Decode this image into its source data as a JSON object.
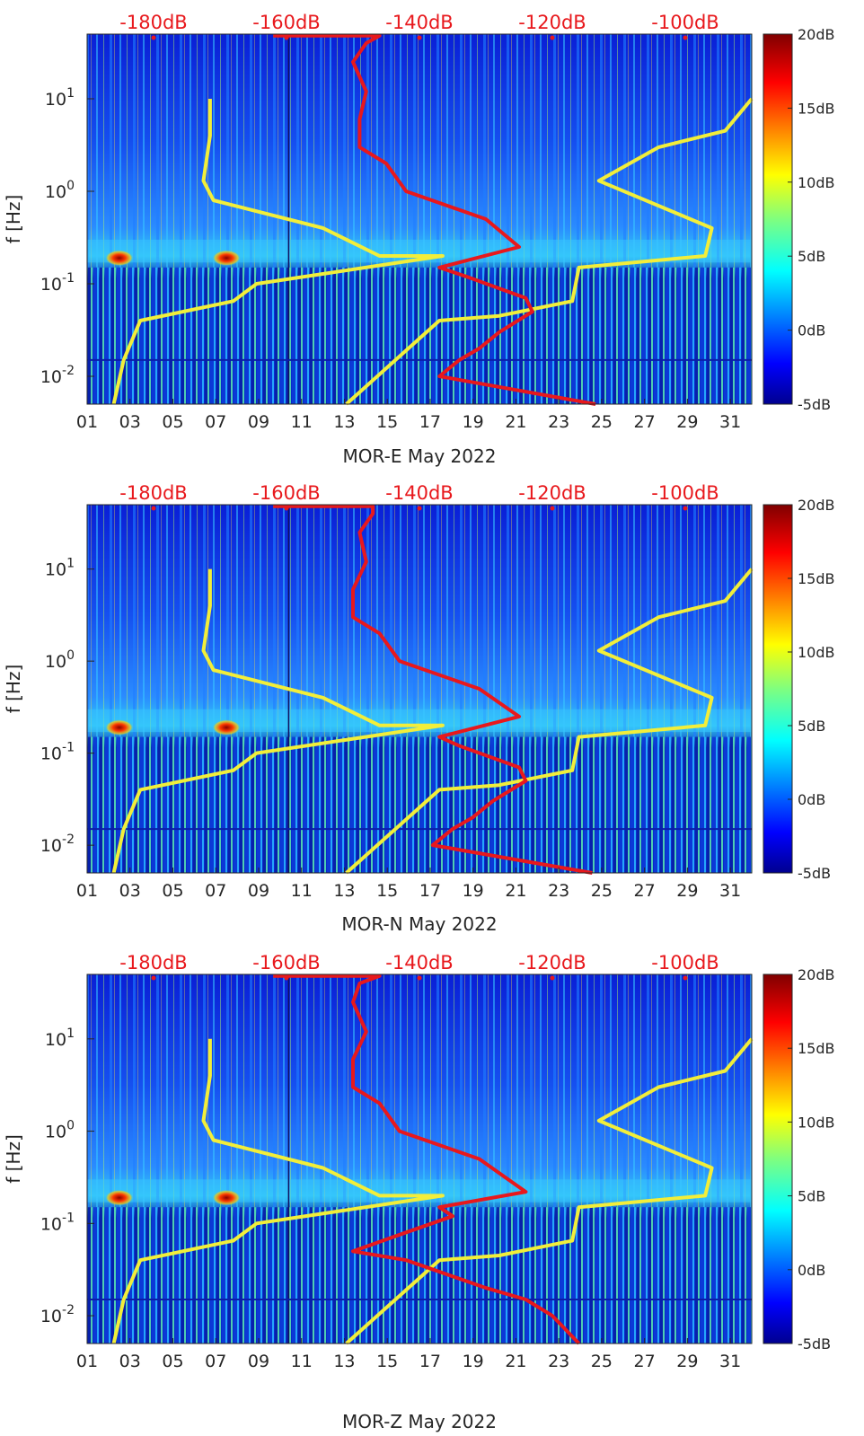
{
  "chart_data": [
    {
      "type": "heatmap",
      "station": "MOR-E",
      "xlabel": "MOR-E May 2022",
      "ylabel": "f [Hz]",
      "x_ticks": [
        "01",
        "03",
        "05",
        "07",
        "09",
        "11",
        "13",
        "15",
        "17",
        "19",
        "21",
        "23",
        "25",
        "27",
        "29",
        "31"
      ],
      "x_range_days": [
        1,
        32
      ],
      "y_scale": "log",
      "y_ticks": [
        "10^{-2}",
        "10^{-1}",
        "10^{0}",
        "10^{1}"
      ],
      "y_range_hz": [
        0.005,
        50
      ],
      "top_axis_ticks": [
        "-180dB",
        "-160dB",
        "-140dB",
        "-120dB",
        "-100dB"
      ],
      "top_axis_range_db": [
        -190,
        -90
      ],
      "colorbar_ticks": [
        "20dB",
        "15dB",
        "10dB",
        "5dB",
        "0dB",
        "-5dB"
      ],
      "colorbar_range_db": [
        -5,
        20
      ],
      "colormap": "jet",
      "noise_model_colors": {
        "yellow": "#f2ee3a",
        "red": "#e8181c"
      },
      "yellow_curve": {
        "db": [
          -171.5,
          -171.5,
          -172.5,
          -171,
          -154.5,
          -146,
          -136.5,
          -164.5,
          -168,
          -182,
          -184.5,
          -186
        ],
        "f_hz": [
          10,
          4.0,
          1.3,
          0.8,
          0.4,
          0.2,
          0.2,
          0.1,
          0.065,
          0.04,
          0.015,
          0.005
        ]
      },
      "red_curve": {
        "db": [
          -162,
          -146,
          -148,
          -150,
          -148,
          -149,
          -149,
          -145,
          -142,
          -130,
          -125,
          -137,
          -133,
          -124,
          -123,
          -128,
          -131,
          -134,
          -137,
          -113.5
        ],
        "f_hz": [
          48,
          48,
          40,
          25,
          12,
          6,
          3,
          2,
          1,
          0.5,
          0.25,
          0.15,
          0.12,
          0.07,
          0.05,
          0.03,
          0.02,
          0.015,
          0.01,
          0.005
        ]
      },
      "yellow_curve_high": {
        "db": [
          -90,
          -94,
          -104,
          -113,
          -96,
          -97,
          -116,
          -117,
          -128,
          -137,
          -151
        ],
        "f_hz": [
          10,
          4.5,
          3.0,
          1.3,
          0.4,
          0.2,
          0.15,
          0.065,
          0.045,
          0.04,
          0.005
        ]
      }
    },
    {
      "type": "heatmap",
      "station": "MOR-N",
      "xlabel": "MOR-N May 2022",
      "ylabel": "f [Hz]",
      "x_ticks": [
        "01",
        "03",
        "05",
        "07",
        "09",
        "11",
        "13",
        "15",
        "17",
        "19",
        "21",
        "23",
        "25",
        "27",
        "29",
        "31"
      ],
      "x_range_days": [
        1,
        32
      ],
      "y_scale": "log",
      "y_ticks": [
        "10^{-2}",
        "10^{-1}",
        "10^{0}",
        "10^{1}"
      ],
      "y_range_hz": [
        0.005,
        50
      ],
      "top_axis_ticks": [
        "-180dB",
        "-160dB",
        "-140dB",
        "-120dB",
        "-100dB"
      ],
      "top_axis_range_db": [
        -190,
        -90
      ],
      "colorbar_ticks": [
        "20dB",
        "15dB",
        "10dB",
        "5dB",
        "0dB",
        "-5dB"
      ],
      "colorbar_range_db": [
        -5,
        20
      ],
      "colormap": "jet",
      "noise_model_colors": {
        "yellow": "#f2ee3a",
        "red": "#e8181c"
      },
      "yellow_curve": {
        "db": [
          -171.5,
          -171.5,
          -172.5,
          -171,
          -154.5,
          -146,
          -136.5,
          -164.5,
          -168,
          -182,
          -184.5,
          -186
        ],
        "f_hz": [
          10,
          4.0,
          1.3,
          0.8,
          0.4,
          0.2,
          0.2,
          0.1,
          0.065,
          0.04,
          0.015,
          0.005
        ]
      },
      "red_curve": {
        "db": [
          -162,
          -147,
          -147,
          -149,
          -148,
          -150,
          -150,
          -146,
          -143,
          -131,
          -125,
          -137,
          -134,
          -125,
          -124,
          -129,
          -132,
          -135,
          -138,
          -114
        ],
        "f_hz": [
          48,
          48,
          40,
          25,
          12,
          6,
          3,
          2,
          1,
          0.5,
          0.25,
          0.15,
          0.12,
          0.07,
          0.05,
          0.03,
          0.02,
          0.015,
          0.01,
          0.005
        ]
      },
      "yellow_curve_high": {
        "db": [
          -90,
          -94,
          -104,
          -113,
          -96,
          -97,
          -116,
          -117,
          -128,
          -137,
          -151
        ],
        "f_hz": [
          10,
          4.5,
          3.0,
          1.3,
          0.4,
          0.2,
          0.15,
          0.065,
          0.045,
          0.04,
          0.005
        ]
      }
    },
    {
      "type": "heatmap",
      "station": "MOR-Z",
      "xlabel": "MOR-Z May 2022",
      "ylabel": "f [Hz]",
      "x_ticks": [
        "01",
        "03",
        "05",
        "07",
        "09",
        "11",
        "13",
        "15",
        "17",
        "19",
        "21",
        "23",
        "25",
        "27",
        "29",
        "31"
      ],
      "x_range_days": [
        1,
        32
      ],
      "y_scale": "log",
      "y_ticks": [
        "10^{-2}",
        "10^{-1}",
        "10^{0}",
        "10^{1}"
      ],
      "y_range_hz": [
        0.005,
        50
      ],
      "top_axis_ticks": [
        "-180dB",
        "-160dB",
        "-140dB",
        "-120dB",
        "-100dB"
      ],
      "top_axis_range_db": [
        -190,
        -90
      ],
      "colorbar_ticks": [
        "20dB",
        "15dB",
        "10dB",
        "5dB",
        "0dB",
        "-5dB"
      ],
      "colorbar_range_db": [
        -5,
        20
      ],
      "colormap": "jet",
      "noise_model_colors": {
        "yellow": "#f2ee3a",
        "red": "#e8181c"
      },
      "yellow_curve": {
        "db": [
          -171.5,
          -171.5,
          -172.5,
          -171,
          -154.5,
          -146,
          -136.5,
          -164.5,
          -168,
          -182,
          -184.5,
          -186
        ],
        "f_hz": [
          10,
          4.0,
          1.3,
          0.8,
          0.4,
          0.2,
          0.2,
          0.1,
          0.065,
          0.04,
          0.015,
          0.005
        ]
      },
      "red_curve": {
        "db": [
          -162,
          -146,
          -149,
          -150,
          -148,
          -150,
          -150,
          -146,
          -143,
          -131,
          -124,
          -137,
          -135,
          -142,
          -150,
          -142,
          -130,
          -124,
          -120,
          -116
        ],
        "f_hz": [
          48,
          48,
          40,
          25,
          12,
          6,
          3,
          2,
          1,
          0.5,
          0.22,
          0.15,
          0.12,
          0.08,
          0.05,
          0.04,
          0.02,
          0.015,
          0.01,
          0.005
        ]
      },
      "yellow_curve_high": {
        "db": [
          -90,
          -94,
          -104,
          -113,
          -96,
          -97,
          -116,
          -117,
          -128,
          -137,
          -151
        ],
        "f_hz": [
          10,
          4.5,
          3.0,
          1.3,
          0.4,
          0.2,
          0.15,
          0.065,
          0.045,
          0.04,
          0.005
        ]
      }
    }
  ]
}
